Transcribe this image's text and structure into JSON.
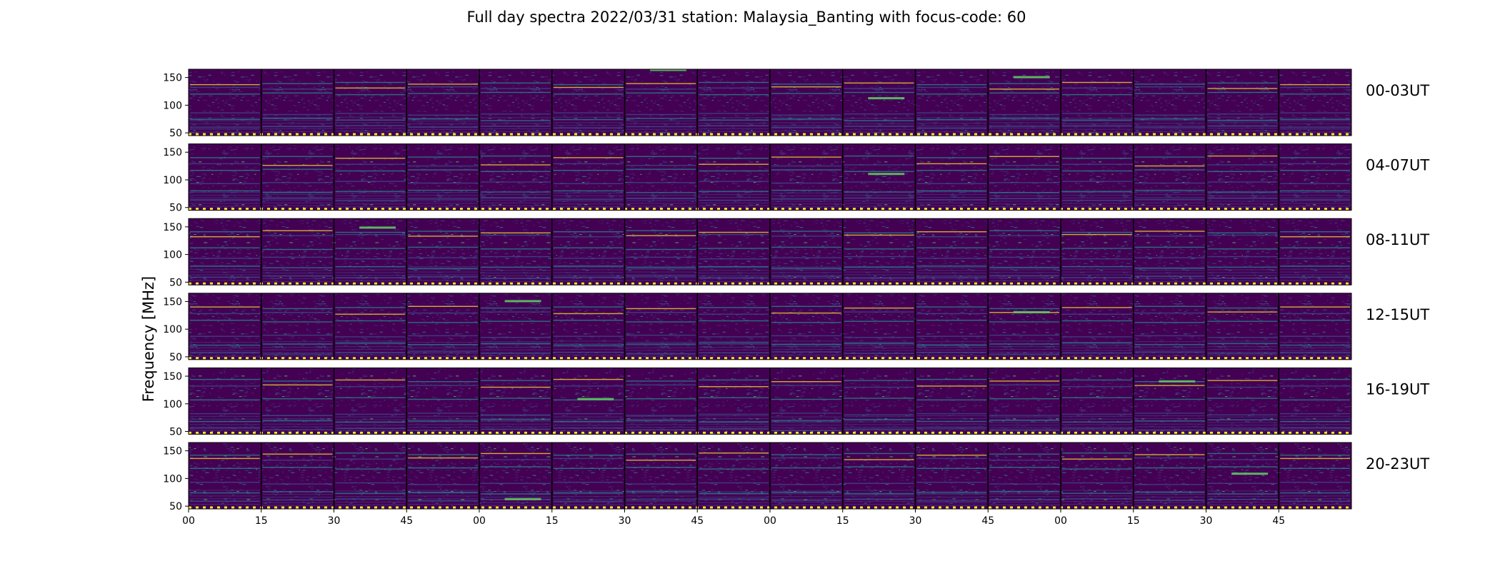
{
  "chart_data": {
    "type": "heatmap",
    "title": "Full day spectra 2022/03/31 station: Malaysia_Banting with focus-code: 60",
    "ylabel": "Frequency [MHz]",
    "xlabel": "",
    "ylim": [
      45,
      165
    ],
    "y_ticks": [
      50,
      100,
      150
    ],
    "x_ticks": [
      "00",
      "15",
      "30",
      "45",
      "00",
      "15",
      "30",
      "45",
      "00",
      "15",
      "30",
      "45",
      "00",
      "15",
      "30",
      "45"
    ],
    "grid": false,
    "colormap": "viridis",
    "colors": {
      "background": "#440154",
      "low": "#3b528b",
      "mid": "#21918c",
      "high": "#5ec962",
      "peak": "#fde725",
      "time_marker": "#fde725"
    },
    "panel_minutes": 15,
    "panels_per_row": 16,
    "rows": [
      {
        "label": "00-03UT",
        "bright_bands_mhz": [
          140,
          132,
          122,
          85,
          75,
          62
        ],
        "bursts": [
          [
            9,
            112
          ],
          [
            11,
            150
          ],
          [
            6,
            165
          ]
        ]
      },
      {
        "label": "04-07UT",
        "bright_bands_mhz": [
          142,
          128,
          118,
          96,
          80,
          66
        ],
        "bursts": [
          [
            9,
            110
          ]
        ]
      },
      {
        "label": "08-11UT",
        "bright_bands_mhz": [
          142,
          135,
          112,
          95,
          78,
          60
        ],
        "bursts": [
          [
            2,
            148
          ]
        ]
      },
      {
        "label": "12-15UT",
        "bright_bands_mhz": [
          140,
          130,
          115,
          88,
          74,
          58
        ],
        "bursts": [
          [
            4,
            150
          ],
          [
            11,
            130
          ]
        ]
      },
      {
        "label": "16-19UT",
        "bright_bands_mhz": [
          143,
          133,
          110,
          82,
          70,
          55
        ],
        "bursts": [
          [
            5,
            108
          ],
          [
            13,
            140
          ]
        ]
      },
      {
        "label": "20-23UT",
        "bright_bands_mhz": [
          145,
          136,
          120,
          92,
          75,
          62
        ],
        "bursts": [
          [
            4,
            62
          ],
          [
            14,
            108
          ]
        ]
      }
    ]
  }
}
